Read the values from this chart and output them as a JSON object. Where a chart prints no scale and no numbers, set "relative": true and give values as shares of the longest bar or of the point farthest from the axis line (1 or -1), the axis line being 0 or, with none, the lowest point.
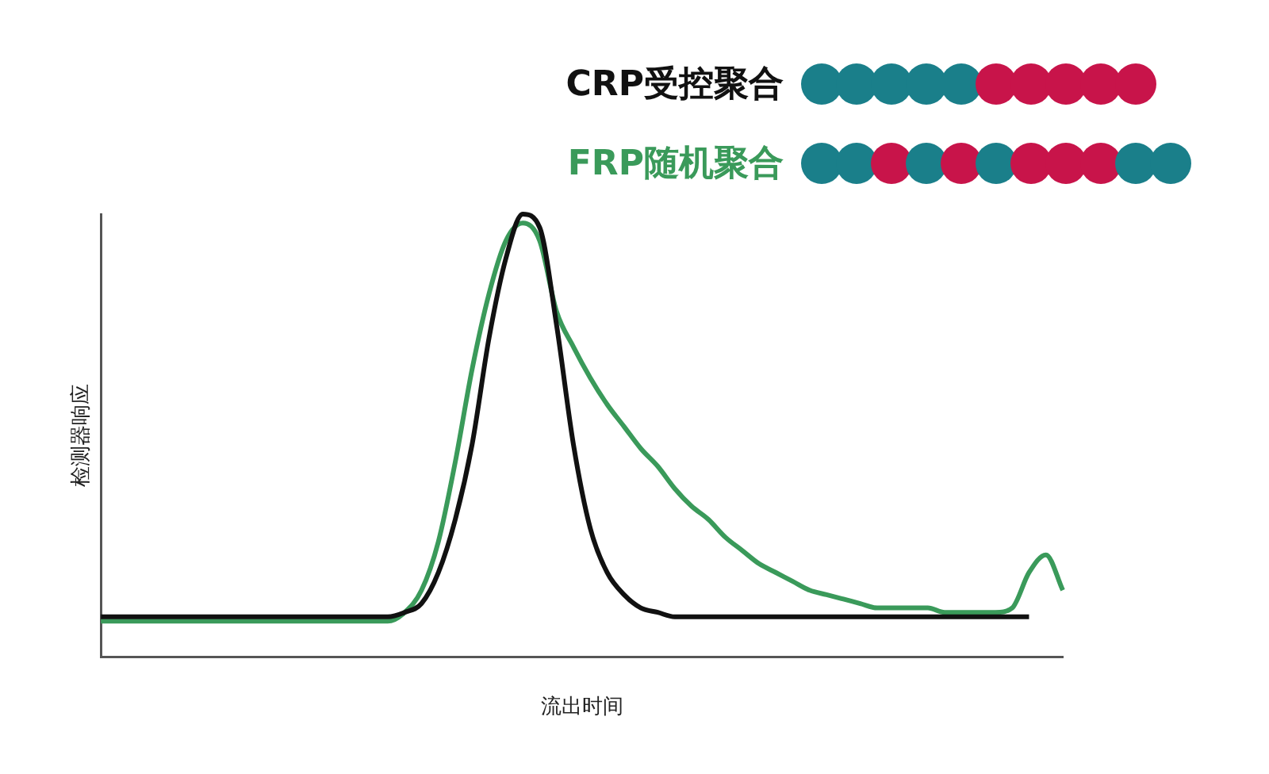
{
  "chart_data": {
    "type": "line",
    "xlabel": "流出时间",
    "ylabel": "检测器响应",
    "relative": true,
    "legend": "top right",
    "categories": [
      null,
      null,
      null,
      null,
      null,
      null,
      null,
      null,
      null,
      null,
      null,
      null,
      null,
      null,
      null,
      null,
      null,
      null,
      null,
      null,
      null,
      null,
      null,
      null,
      null,
      null,
      null,
      null,
      null,
      null,
      null,
      null,
      null,
      null,
      null,
      null,
      null,
      null,
      null,
      null,
      null,
      null,
      null,
      null,
      null,
      null,
      null,
      null,
      null,
      null,
      null,
      null,
      null,
      null,
      null,
      null,
      null,
      null
    ],
    "series": [
      {
        "name": "CRP受控聚合",
        "color": "#111111",
        "values": [
          0.09,
          0.09,
          0.09,
          0.09,
          0.09,
          0.09,
          0.09,
          0.09,
          0.09,
          0.09,
          0.09,
          0.09,
          0.09,
          0.09,
          0.09,
          0.09,
          0.09,
          0.09,
          0.1,
          0.12,
          0.19,
          0.31,
          0.48,
          0.72,
          0.9,
          1.0,
          0.97,
          0.75,
          0.48,
          0.29,
          0.19,
          0.14,
          0.11,
          0.1,
          0.09,
          0.09,
          0.09,
          0.09,
          0.09,
          0.09,
          0.09,
          0.09,
          0.09,
          0.09,
          0.09,
          0.09,
          0.09,
          0.09,
          0.09,
          0.09,
          0.09,
          0.09,
          0.09,
          0.09,
          0.09,
          0.09,
          null,
          null
        ]
      },
      {
        "name": "FRP随机聚合",
        "color": "#3a9a5a",
        "values": [
          0.08,
          0.08,
          0.08,
          0.08,
          0.08,
          0.08,
          0.08,
          0.08,
          0.08,
          0.08,
          0.08,
          0.08,
          0.08,
          0.08,
          0.08,
          0.08,
          0.08,
          0.08,
          0.1,
          0.15,
          0.26,
          0.44,
          0.65,
          0.82,
          0.94,
          0.98,
          0.94,
          0.78,
          0.7,
          0.63,
          0.57,
          0.52,
          0.47,
          0.43,
          0.38,
          0.34,
          0.31,
          0.27,
          0.24,
          0.21,
          0.19,
          0.17,
          0.15,
          0.14,
          0.13,
          0.12,
          0.11,
          0.11,
          0.11,
          0.11,
          0.1,
          0.1,
          0.1,
          0.1,
          0.11,
          0.19,
          0.23,
          0.15
        ]
      }
    ]
  }
}
